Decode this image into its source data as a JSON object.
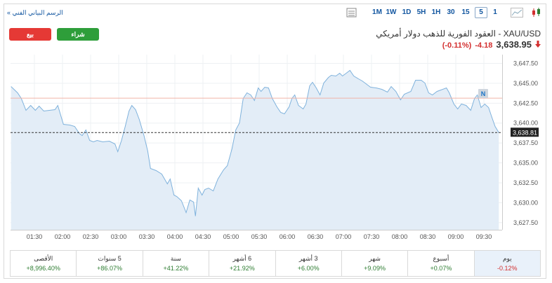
{
  "toolbar": {
    "chart_link": "الرسم البياني الفني »",
    "timeframes": [
      "1M",
      "1W",
      "1D",
      "5H",
      "1H",
      "30",
      "15",
      "5",
      "1"
    ],
    "selected_timeframe": 7
  },
  "header": {
    "sell": "بيع",
    "buy": "شراء",
    "title": "XAU/USD - العقود الفورية للذهب دولار أمريكي",
    "price": "3,638.95",
    "change": "-4.18",
    "change_percent": "(-0.11%)"
  },
  "chart_data": {
    "type": "line",
    "watermark": "Investing",
    "watermark_suffix": ".com",
    "x": [
      65,
      72,
      76,
      81,
      86,
      91,
      95,
      100,
      106,
      112,
      115,
      121,
      128,
      133,
      138,
      141,
      145,
      149,
      153,
      157,
      163,
      170,
      176,
      179,
      183,
      187,
      191,
      194,
      198,
      202,
      207,
      211,
      214,
      220,
      226,
      232,
      235,
      239,
      242,
      247,
      250,
      252,
      256,
      260,
      262,
      265,
      269,
      272,
      276,
      281,
      286,
      292,
      296,
      301,
      305,
      309,
      313,
      317,
      321,
      325,
      329,
      332,
      336,
      340,
      344,
      349,
      353,
      357,
      362,
      365,
      368,
      372,
      377,
      380,
      384,
      387,
      391,
      395,
      399,
      404,
      407,
      412,
      416,
      419,
      423,
      427,
      431,
      436,
      440,
      443,
      449,
      455,
      461,
      467,
      471,
      476,
      481,
      485,
      492,
      497,
      503,
      507,
      511,
      515,
      520,
      524,
      530,
      533,
      538,
      542,
      546,
      551,
      556,
      560,
      563,
      567,
      571,
      575,
      578,
      582,
      586
    ],
    "values": [
      3644.6,
      3643.8,
      3643.1,
      3641.6,
      3642.22,
      3641.6,
      3642.13,
      3641.52,
      3641.6,
      3641.69,
      3642.22,
      3639.84,
      3639.76,
      3639.58,
      3638.7,
      3638.44,
      3639.14,
      3637.82,
      3637.64,
      3637.82,
      3637.64,
      3637.73,
      3637.38,
      3636.41,
      3637.82,
      3639.58,
      3641.52,
      3642.22,
      3641.69,
      3640.46,
      3638.44,
      3636.5,
      3634.3,
      3634.04,
      3633.6,
      3632.36,
      3632.98,
      3630.96,
      3630.78,
      3630.25,
      3629.37,
      3628.76,
      3630.34,
      3630.08,
      3628.32,
      3631.84,
      3630.96,
      3631.66,
      3631.84,
      3631.48,
      3632.98,
      3634.12,
      3634.65,
      3636.76,
      3639.14,
      3640.02,
      3643.1,
      3643.8,
      3643.54,
      3642.84,
      3644.42,
      3643.98,
      3644.51,
      3644.42,
      3643.1,
      3642.04,
      3641.34,
      3641.16,
      3642.04,
      3643.1,
      3643.54,
      3642.22,
      3641.78,
      3642.4,
      3644.68,
      3645.12,
      3644.42,
      3643.54,
      3645.04,
      3645.74,
      3646.0,
      3645.92,
      3646.27,
      3645.92,
      3646.27,
      3646.62,
      3645.92,
      3645.56,
      3645.3,
      3645.04,
      3644.51,
      3644.42,
      3644.24,
      3643.89,
      3644.6,
      3643.98,
      3642.92,
      3643.63,
      3643.98,
      3645.39,
      3645.39,
      3645.04,
      3643.8,
      3643.54,
      3643.98,
      3644.16,
      3644.42,
      3643.8,
      3642.4,
      3641.78,
      3642.4,
      3642.22,
      3641.6,
      3643.1,
      3643.54,
      3641.96,
      3642.4,
      3641.96,
      3640.9,
      3639.58,
      3638.81
    ],
    "color": "#7fb2dc",
    "fill": "#e3edf7",
    "xlim": [
      64.5,
      589.5
    ],
    "ylim": [
      3626.6,
      3648.6
    ],
    "xticks": [
      {
        "value": 90,
        "label": "01:30"
      },
      {
        "value": 120,
        "label": "02:00"
      },
      {
        "value": 150,
        "label": "02:30"
      },
      {
        "value": 180,
        "label": "03:00"
      },
      {
        "value": 210,
        "label": "03:30"
      },
      {
        "value": 240,
        "label": "04:00"
      },
      {
        "value": 270,
        "label": "04:30"
      },
      {
        "value": 300,
        "label": "05:00"
      },
      {
        "value": 330,
        "label": "05:30"
      },
      {
        "value": 360,
        "label": "06:00"
      },
      {
        "value": 390,
        "label": "06:30"
      },
      {
        "value": 420,
        "label": "07:00"
      },
      {
        "value": 450,
        "label": "07:30"
      },
      {
        "value": 480,
        "label": "08:00"
      },
      {
        "value": 510,
        "label": "08:30"
      },
      {
        "value": 540,
        "label": "09:00"
      },
      {
        "value": 570,
        "label": "09:30"
      }
    ],
    "yticks": [
      {
        "value": 3627.5,
        "label": "3,627.50"
      },
      {
        "value": 3630,
        "label": "3,630.00"
      },
      {
        "value": 3632.5,
        "label": "3,632.50"
      },
      {
        "value": 3635,
        "label": "3,635.00"
      },
      {
        "value": 3637.5,
        "label": "3,637.50"
      },
      {
        "value": 3640,
        "label": "3,640.00"
      },
      {
        "value": 3642.5,
        "label": "3,642.50"
      },
      {
        "value": 3645,
        "label": "3,645.00"
      },
      {
        "value": 3647.5,
        "label": "3,647.50"
      }
    ],
    "reference_line": {
      "value": 3643.13,
      "color": "#f0b4a8"
    },
    "last_price": {
      "value": 3638.81,
      "label": "3,638.81"
    },
    "grid": true
  },
  "performance": {
    "labels": [
      "يوم",
      "أسبوع",
      "شهر",
      "3 أشهر",
      "6 أشهر",
      "سنة",
      "5 سنوات",
      "الأقصى"
    ],
    "values": [
      "-0.12%",
      "+0.07%",
      "+9.09%",
      "+6.00%",
      "+21.92%",
      "+41.22%",
      "+86.07%",
      "+8,996.40%"
    ],
    "selected": 0
  }
}
